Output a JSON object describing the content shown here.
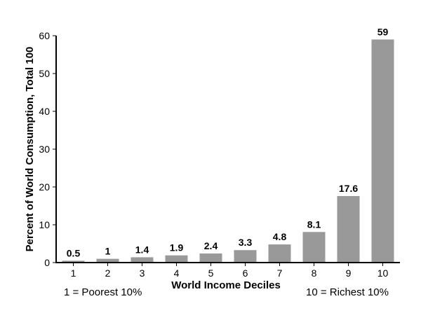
{
  "chart_data": {
    "type": "bar",
    "categories": [
      "1",
      "2",
      "3",
      "4",
      "5",
      "6",
      "7",
      "8",
      "9",
      "10"
    ],
    "values": [
      0.5,
      1,
      1.4,
      1.9,
      2.4,
      3.3,
      4.8,
      8.1,
      17.6,
      59
    ],
    "value_labels": [
      "0.5",
      "1",
      "1.4",
      "1.9",
      "2.4",
      "3.3",
      "4.8",
      "8.1",
      "17.6",
      "59"
    ],
    "title": "",
    "xlabel": "World Income Deciles",
    "ylabel": "Percent of World Consumption, Total 100",
    "ylim": [
      0,
      60
    ],
    "yticks": [
      0,
      10,
      20,
      30,
      40,
      50,
      60
    ],
    "grid": false,
    "bar_color": "#999999",
    "axis_color": "#000000",
    "annotations": {
      "left": "1 = Poorest 10%",
      "right": "10 = Richest 10%"
    }
  }
}
